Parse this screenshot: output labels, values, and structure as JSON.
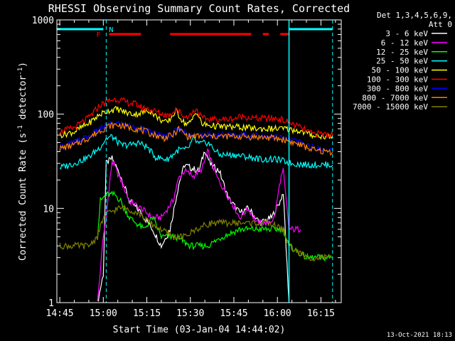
{
  "chart_data": {
    "type": "line",
    "title": "RHESSI Observing Summary Count Rates, Corrected",
    "xlabel": "Start Time (03-Jan-04 14:44:02)",
    "ylabel": "Corrected Count Rate (s-1 detector-1)",
    "ylabel_parts": [
      "Corrected Count Rate (s",
      "-1",
      " detector",
      "-1",
      ")"
    ],
    "y_scale": "log",
    "ylim": [
      1,
      1000
    ],
    "xlim": [
      "14:44",
      "16:22"
    ],
    "x_ticks": [
      "14:45",
      "15:00",
      "15:15",
      "15:30",
      "15:45",
      "16:00",
      "16:15"
    ],
    "y_ticks": [
      "1",
      "10",
      "100",
      "1000"
    ],
    "grid": false,
    "legend_position": "top-right",
    "legend_header": [
      "Det 1,3,4,5,6,9,",
      "Att 0"
    ],
    "footer_date": "13-Oct-2021 18:13",
    "markers": {
      "N": "N",
      "F": "F",
      "eclipse_bars": [
        {
          "start": "14:44",
          "end": "15:00",
          "color": "#00ffff"
        },
        {
          "start": "16:04",
          "end": "16:19",
          "color": "#00ffff"
        }
      ],
      "flare_bars": [
        {
          "start": "15:02",
          "end": "15:13",
          "color": "#ff0000"
        },
        {
          "start": "15:23",
          "end": "15:51",
          "color": "#ff0000"
        },
        {
          "start": "15:55",
          "end": "15:57",
          "color": "#ff0000"
        },
        {
          "start": "16:01",
          "end": "16:04",
          "color": "#ff0000"
        }
      ],
      "dashed_lines": [
        "15:01",
        "16:04",
        "16:19"
      ]
    },
    "series": [
      {
        "name": "3 - 6 keV",
        "color": "#ffffff",
        "points": [
          [
            "14:58",
            1
          ],
          [
            "15:00",
            2
          ],
          [
            "15:01",
            30
          ],
          [
            "15:03",
            34
          ],
          [
            "15:06",
            22
          ],
          [
            "15:09",
            12
          ],
          [
            "15:13",
            9
          ],
          [
            "15:17",
            6
          ],
          [
            "15:20",
            4
          ],
          [
            "15:23",
            6
          ],
          [
            "15:26",
            18
          ],
          [
            "15:28",
            29
          ],
          [
            "15:30",
            27
          ],
          [
            "15:33",
            25
          ],
          [
            "15:35",
            42
          ],
          [
            "15:37",
            29
          ],
          [
            "15:40",
            25
          ],
          [
            "15:43",
            13
          ],
          [
            "15:47",
            9
          ],
          [
            "15:50",
            10
          ],
          [
            "15:54",
            7
          ],
          [
            "15:58",
            8
          ],
          [
            "16:01",
            12
          ],
          [
            "16:02",
            15
          ],
          [
            "16:04",
            1
          ]
        ]
      },
      {
        "name": "6 - 12 keV",
        "color": "#ff00ff",
        "points": [
          [
            "14:58",
            1
          ],
          [
            "15:00",
            5
          ],
          [
            "15:01",
            8
          ],
          [
            "15:03",
            32
          ],
          [
            "15:06",
            20
          ],
          [
            "15:09",
            12
          ],
          [
            "15:13",
            10
          ],
          [
            "15:17",
            8
          ],
          [
            "15:20",
            8
          ],
          [
            "15:24",
            12
          ],
          [
            "15:26",
            21
          ],
          [
            "15:28",
            25
          ],
          [
            "15:31",
            22
          ],
          [
            "15:34",
            26
          ],
          [
            "15:36",
            40
          ],
          [
            "15:39",
            22
          ],
          [
            "15:41",
            17
          ],
          [
            "15:44",
            12
          ],
          [
            "15:47",
            8
          ],
          [
            "15:50",
            10
          ],
          [
            "15:53",
            7
          ],
          [
            "15:57",
            7
          ],
          [
            "15:59",
            8
          ],
          [
            "16:01",
            20
          ],
          [
            "16:02",
            25
          ],
          [
            "16:04",
            6
          ],
          [
            "16:08",
            6
          ]
        ]
      },
      {
        "name": "12 - 25 keV",
        "color": "#00ff00",
        "points": [
          [
            "14:58",
            5
          ],
          [
            "14:59",
            12
          ],
          [
            "15:01",
            14
          ],
          [
            "15:04",
            14
          ],
          [
            "15:06",
            12
          ],
          [
            "15:09",
            8
          ],
          [
            "15:14",
            6
          ],
          [
            "15:17",
            8
          ],
          [
            "15:20",
            5
          ],
          [
            "15:25",
            5
          ],
          [
            "15:30",
            4
          ],
          [
            "15:36",
            4
          ],
          [
            "15:41",
            5
          ],
          [
            "15:47",
            6
          ],
          [
            "15:52",
            6
          ],
          [
            "15:57",
            6
          ],
          [
            "16:02",
            6
          ],
          [
            "16:04",
            4
          ],
          [
            "16:10",
            3
          ],
          [
            "16:15",
            3
          ],
          [
            "16:19",
            3
          ]
        ]
      },
      {
        "name": "25 - 50 keV",
        "color": "#00ffff",
        "points": [
          [
            "14:45",
            27
          ],
          [
            "14:50",
            30
          ],
          [
            "14:55",
            35
          ],
          [
            "14:59",
            45
          ],
          [
            "15:01",
            55
          ],
          [
            "15:03",
            58
          ],
          [
            "15:06",
            47
          ],
          [
            "15:09",
            47
          ],
          [
            "15:12",
            50
          ],
          [
            "15:15",
            45
          ],
          [
            "15:18",
            35
          ],
          [
            "15:22",
            33
          ],
          [
            "15:26",
            42
          ],
          [
            "15:29",
            42
          ],
          [
            "15:31",
            55
          ],
          [
            "15:33",
            48
          ],
          [
            "15:36",
            50
          ],
          [
            "15:40",
            37
          ],
          [
            "15:45",
            37
          ],
          [
            "15:50",
            35
          ],
          [
            "15:55",
            33
          ],
          [
            "16:00",
            33
          ],
          [
            "16:05",
            30
          ],
          [
            "16:10",
            29
          ],
          [
            "16:15",
            29
          ],
          [
            "16:19",
            29
          ]
        ]
      },
      {
        "name": "50 - 100 keV",
        "color": "#ffff00",
        "points": [
          [
            "14:45",
            60
          ],
          [
            "14:50",
            65
          ],
          [
            "14:55",
            80
          ],
          [
            "14:59",
            100
          ],
          [
            "15:02",
            110
          ],
          [
            "15:05",
            113
          ],
          [
            "15:08",
            103
          ],
          [
            "15:11",
            100
          ],
          [
            "15:14",
            105
          ],
          [
            "15:16",
            110
          ],
          [
            "15:19",
            90
          ],
          [
            "15:22",
            80
          ],
          [
            "15:25",
            108
          ],
          [
            "15:28",
            80
          ],
          [
            "15:30",
            80
          ],
          [
            "15:32",
            108
          ],
          [
            "15:34",
            78
          ],
          [
            "15:38",
            75
          ],
          [
            "15:42",
            73
          ],
          [
            "15:47",
            73
          ],
          [
            "15:52",
            70
          ],
          [
            "15:57",
            70
          ],
          [
            "16:02",
            70
          ],
          [
            "16:07",
            67
          ],
          [
            "16:12",
            60
          ],
          [
            "16:16",
            58
          ],
          [
            "16:19",
            58
          ]
        ]
      },
      {
        "name": "100 - 300 keV",
        "color": "#ff0000",
        "points": [
          [
            "14:45",
            65
          ],
          [
            "14:50",
            72
          ],
          [
            "14:55",
            92
          ],
          [
            "14:59",
            125
          ],
          [
            "15:02",
            140
          ],
          [
            "15:05",
            145
          ],
          [
            "15:08",
            133
          ],
          [
            "15:11",
            128
          ],
          [
            "15:14",
            115
          ],
          [
            "15:17",
            110
          ],
          [
            "15:20",
            100
          ],
          [
            "15:23",
            98
          ],
          [
            "15:25",
            115
          ],
          [
            "15:28",
            93
          ],
          [
            "15:30",
            98
          ],
          [
            "15:32",
            115
          ],
          [
            "15:34",
            90
          ],
          [
            "15:38",
            88
          ],
          [
            "15:42",
            88
          ],
          [
            "15:45",
            90
          ],
          [
            "15:48",
            95
          ],
          [
            "15:52",
            90
          ],
          [
            "15:56",
            90
          ],
          [
            "16:00",
            90
          ],
          [
            "16:04",
            82
          ],
          [
            "16:08",
            72
          ],
          [
            "16:12",
            62
          ],
          [
            "16:16",
            62
          ],
          [
            "16:19",
            60
          ]
        ]
      },
      {
        "name": "300 - 800 keV",
        "color": "#0000ff",
        "points": [
          [
            "14:45",
            45
          ],
          [
            "14:50",
            50
          ],
          [
            "14:55",
            58
          ],
          [
            "14:59",
            70
          ],
          [
            "15:02",
            77
          ],
          [
            "15:05",
            80
          ],
          [
            "15:09",
            75
          ],
          [
            "15:13",
            70
          ],
          [
            "15:17",
            63
          ],
          [
            "15:21",
            58
          ],
          [
            "15:24",
            62
          ],
          [
            "15:26",
            72
          ],
          [
            "15:29",
            60
          ],
          [
            "15:33",
            60
          ],
          [
            "15:38",
            60
          ],
          [
            "15:43",
            60
          ],
          [
            "15:48",
            60
          ],
          [
            "15:53",
            60
          ],
          [
            "15:58",
            58
          ],
          [
            "16:03",
            55
          ],
          [
            "16:08",
            50
          ],
          [
            "16:13",
            43
          ],
          [
            "16:17",
            42
          ],
          [
            "16:19",
            41
          ]
        ]
      },
      {
        "name": "800 - 7000 keV",
        "color": "#ff8000",
        "points": [
          [
            "14:45",
            43
          ],
          [
            "14:50",
            47
          ],
          [
            "14:55",
            56
          ],
          [
            "14:59",
            67
          ],
          [
            "15:02",
            75
          ],
          [
            "15:05",
            77
          ],
          [
            "15:09",
            72
          ],
          [
            "15:13",
            68
          ],
          [
            "15:17",
            61
          ],
          [
            "15:21",
            56
          ],
          [
            "15:24",
            60
          ],
          [
            "15:26",
            70
          ],
          [
            "15:29",
            58
          ],
          [
            "15:33",
            58
          ],
          [
            "15:38",
            58
          ],
          [
            "15:43",
            58
          ],
          [
            "15:48",
            58
          ],
          [
            "15:53",
            57
          ],
          [
            "15:58",
            56
          ],
          [
            "16:03",
            53
          ],
          [
            "16:08",
            47
          ],
          [
            "16:13",
            41
          ],
          [
            "16:17",
            40
          ],
          [
            "16:19",
            40
          ]
        ]
      },
      {
        "name": "7000 - 15000 keV",
        "color": "#808000",
        "points": [
          [
            "14:45",
            4
          ],
          [
            "14:50",
            4
          ],
          [
            "14:55",
            4
          ],
          [
            "14:58",
            5
          ],
          [
            "15:00",
            8
          ],
          [
            "15:02",
            9
          ],
          [
            "15:05",
            10
          ],
          [
            "15:08",
            10
          ],
          [
            "15:12",
            9
          ],
          [
            "15:16",
            7
          ],
          [
            "15:20",
            6
          ],
          [
            "15:24",
            5
          ],
          [
            "15:28",
            5
          ],
          [
            "15:32",
            6
          ],
          [
            "15:37",
            7
          ],
          [
            "15:42",
            7
          ],
          [
            "15:47",
            7
          ],
          [
            "15:52",
            7
          ],
          [
            "15:57",
            7
          ],
          [
            "16:02",
            6
          ],
          [
            "16:04",
            4
          ],
          [
            "16:10",
            3
          ],
          [
            "16:15",
            3
          ],
          [
            "16:19",
            3
          ]
        ]
      }
    ]
  }
}
